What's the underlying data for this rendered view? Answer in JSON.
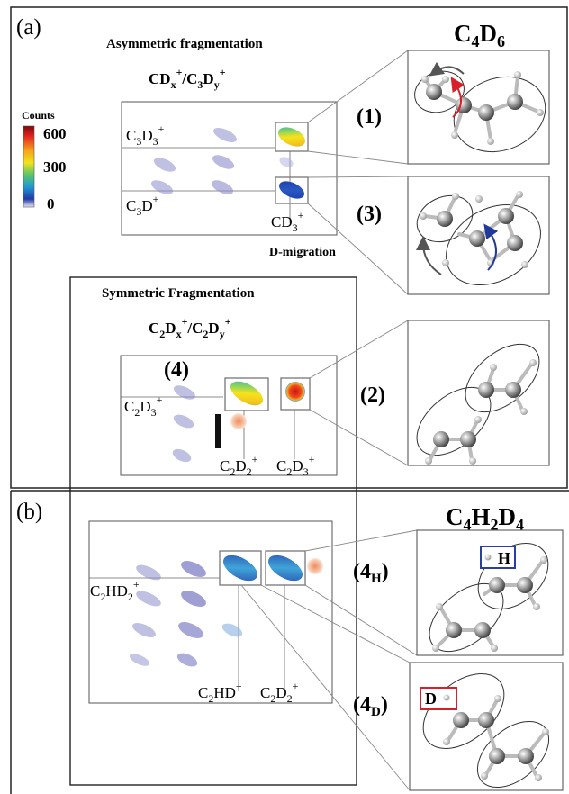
{
  "panel_a": {
    "label": "(a)",
    "molecule": {
      "main": "C",
      "sub1": "4",
      "mid": "D",
      "sub2": "6"
    },
    "asym_title": "Asymmetric fragmentation",
    "asym_ratio": {
      "a": "CD",
      "a_sub": "x",
      "a_sup": "+",
      "sep": "/",
      "b": "C",
      "b_sub1": "3",
      "b_mid": "D",
      "b_sub2": "y",
      "b_sup": "+"
    },
    "colorbar": {
      "title": "Counts",
      "max": "600",
      "mid": "300",
      "min": "0"
    },
    "c3d3": {
      "a": "C",
      "s1": "3",
      "b": "D",
      "s2": "3",
      "sup": "+"
    },
    "c3d": {
      "a": "C",
      "s1": "3",
      "b": "D",
      "sup": "+"
    },
    "cd3": {
      "a": "CD",
      "s1": "3",
      "sup": "+"
    },
    "d_migration": "D-migration",
    "sym_title": "Symmetric Fragmentation",
    "sym_ratio": {
      "a": "C",
      "a_s1": "2",
      "a_mid": "D",
      "a_s2": "x",
      "a_sup": "+",
      "sep": "/",
      "b": "C",
      "b_s1": "2",
      "b_mid": "D",
      "b_s2": "y",
      "b_sup": "+"
    },
    "c2d3": {
      "a": "C",
      "s1": "2",
      "b": "D",
      "s2": "3",
      "sup": "+"
    },
    "c2d2_bottom": {
      "a": "C",
      "s1": "2",
      "b": "D",
      "s2": "2",
      "sup": "+"
    },
    "c2d3_bottom": {
      "a": "C",
      "s1": "2",
      "b": "D",
      "s2": "3",
      "sup": "+"
    },
    "channels": {
      "c1": "(1)",
      "c3": "(3)",
      "c4": "(4)",
      "c2": "(2)"
    }
  },
  "panel_b": {
    "label": "(b)",
    "molecule": {
      "main": "C",
      "s1": "4",
      "m1": "H",
      "s2": "2",
      "m2": "D",
      "s3": "4"
    },
    "c2hd2": {
      "a": "C",
      "s1": "2",
      "b": "HD",
      "s2": "2",
      "sup": "+"
    },
    "c2hd": {
      "a": "C",
      "s1": "2",
      "b": "HD",
      "sup": "+"
    },
    "c2d2": {
      "a": "C",
      "s1": "2",
      "b": "D",
      "s2": "2",
      "sup": "+"
    },
    "ch4h": {
      "main": "(4",
      "sub": "H",
      "end": ")"
    },
    "ch4d": {
      "main": "(4",
      "sub": "D",
      "end": ")"
    },
    "mark_h": "H",
    "mark_d": "D"
  },
  "colors": {
    "hot": "#e83a1e",
    "warm": "#f3d21a",
    "cool": "#2c4fb0",
    "faint": "#8c8ccc",
    "h_box": "#2b3f9e",
    "d_box": "#d8202a",
    "arrow_red": "#d8202a",
    "arrow_blue": "#1f3a9a"
  }
}
